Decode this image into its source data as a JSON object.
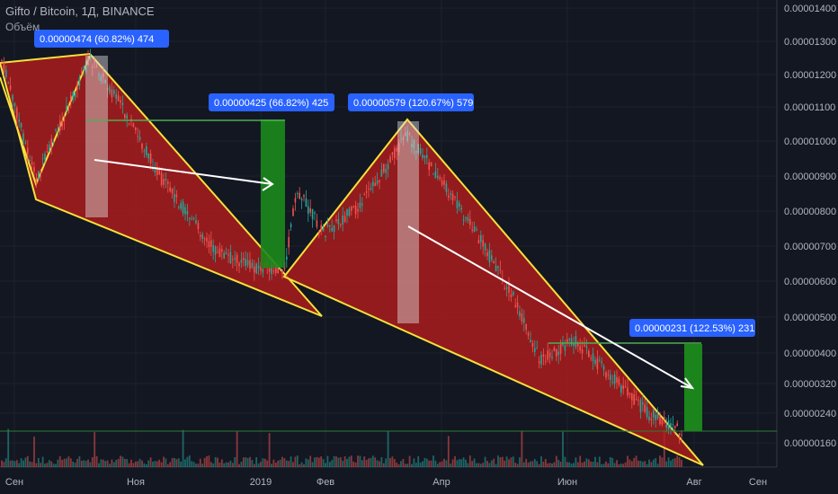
{
  "header": {
    "title": "Gifto / Bitcoin, 1Д, BINANCE",
    "volume_label": "Объём"
  },
  "chart_data": {
    "type": "line",
    "title": "Gifto / Bitcoin, 1Д, BINANCE",
    "y_ticks": [
      "0.00001400",
      "0.00001300",
      "0.00001200",
      "0.00001100",
      "0.00001000",
      "0.00000900",
      "0.00000800",
      "0.00000700",
      "0.00000600",
      "0.00000500",
      "0.00000400",
      "0.00000320",
      "0.00000240",
      "0.00000160"
    ],
    "x_ticks": [
      "Сен",
      "Ноя",
      "2019",
      "Фев",
      "Апр",
      "Июн",
      "Авг",
      "Сен"
    ],
    "annotations": [
      "0.00000474 (60.82%) 474",
      "0.00000425 (66.82%) 425",
      "0.00000579 (120.67%) 579",
      "0.00000231 (122.53%) 231"
    ],
    "colors": {
      "wedge_fill": "#b71c1c",
      "wedge_line": "#f5e13a",
      "badge": "#2962ff",
      "up": "#26a69a",
      "down": "#ef5350",
      "measure_green": "#1b8a1b"
    }
  }
}
